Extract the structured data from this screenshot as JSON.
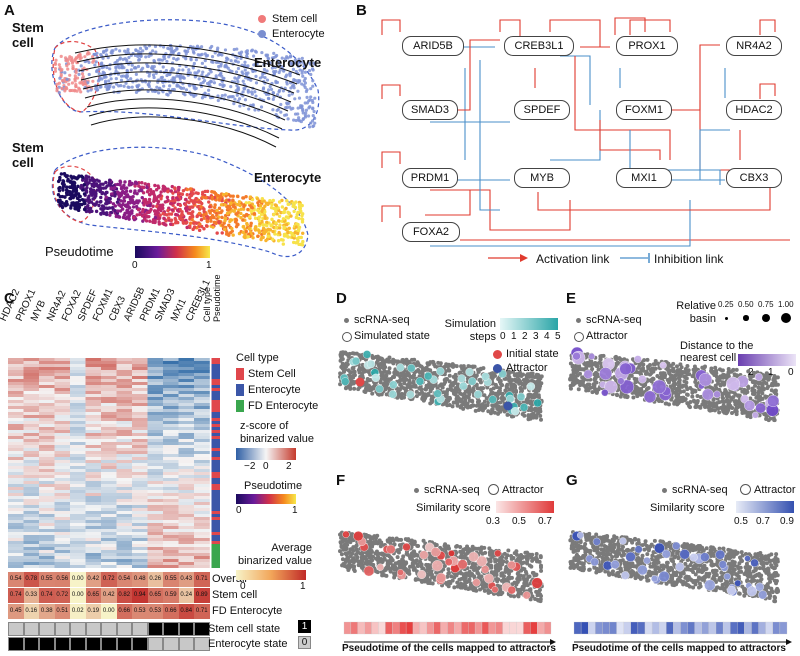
{
  "panels": {
    "A": "A",
    "B": "B",
    "C": "C",
    "D": "D",
    "E": "E",
    "F": "F",
    "G": "G"
  },
  "panelA": {
    "legend": [
      {
        "label": "Stem cell",
        "color": "#f07a7a"
      },
      {
        "label": "Enterocyte",
        "color": "#7b8fd0"
      }
    ],
    "stem_label": "Stem\ncell",
    "stem_label_lines": [
      "Stem",
      "cell"
    ],
    "entero_label": "Enterocyte",
    "pseudotime_label": "Pseudotime",
    "scale_min": "0",
    "scale_max": "1"
  },
  "panelB": {
    "nodes": [
      "ARID5B",
      "CREB3L1",
      "PROX1",
      "NR4A2",
      "SMAD3",
      "SPDEF",
      "FOXM1",
      "HDAC2",
      "PRDM1",
      "MYB",
      "MXI1",
      "CBX3",
      "FOXA2"
    ],
    "legend_activation": "Activation link",
    "legend_inhibition": "Inhibition link",
    "colors": {
      "activation": "#e03a2e",
      "inhibition": "#4a8fc9"
    }
  },
  "panelC": {
    "genes": [
      "HDAC2",
      "PROX1",
      "MYB",
      "NR4A2",
      "FOXA2",
      "SPDEF",
      "FOXM1",
      "CBX3",
      "ARID5B",
      "PRDM1",
      "SMAD3",
      "MXI1",
      "CREB3L1"
    ],
    "extra_cols": [
      "Cell type",
      "Pseudotime"
    ],
    "legend_celltype_title": "Cell type",
    "celltypes": [
      {
        "label": "Stem Cell",
        "color": "#e0474c"
      },
      {
        "label": "Enterocyte",
        "color": "#3b56a8"
      },
      {
        "label": "FD Enterocyte",
        "color": "#3aa64e"
      }
    ],
    "zscore_title": "z-score of\nbinarized value",
    "zscore_lines": [
      "z-score of",
      "binarized value"
    ],
    "zscore_ticks": [
      "−2",
      "0",
      "2"
    ],
    "pseudotime_title": "Pseudotime",
    "pt_ticks": [
      "0",
      "1"
    ],
    "avg_title": "Average\nbinarized value",
    "avg_lines": [
      "Average",
      "binarized value"
    ],
    "avg_ticks": [
      "0",
      "1"
    ],
    "avg_rows": [
      {
        "label": "Overall",
        "values": [
          "0.54",
          "0.78",
          "0.55",
          "0.56",
          "0.00",
          "0.42",
          "0.72",
          "0.54",
          "0.48",
          "0.26",
          "0.55",
          "0.43",
          "0.71"
        ]
      },
      {
        "label": "Stem cell",
        "values": [
          "0.74",
          "0.33",
          "0.74",
          "0.72",
          "0.00",
          "0.65",
          "0.42",
          "0.82",
          "0.94",
          "0.65",
          "0.59",
          "0.24",
          "0.89"
        ]
      },
      {
        "label": "FD Enterocyte",
        "values": [
          "0.45",
          "0.16",
          "0.38",
          "0.51",
          "0.02",
          "0.19",
          "0.00",
          "0.66",
          "0.53",
          "0.53",
          "0.66",
          "0.84",
          "0.71"
        ]
      }
    ],
    "state_rows": [
      {
        "label": "Stem cell state",
        "bits": [
          0,
          0,
          0,
          0,
          0,
          0,
          0,
          0,
          0,
          1,
          1,
          1,
          1
        ]
      },
      {
        "label": "Enterocyte state",
        "bits": [
          1,
          1,
          1,
          1,
          1,
          1,
          1,
          1,
          1,
          0,
          0,
          0,
          0
        ]
      }
    ],
    "state_key": [
      "1",
      "0"
    ]
  },
  "panelD": {
    "legend_sc": "scRNA-seq",
    "legend_sim": "Simulated state",
    "sim_title": "Simulation\nsteps",
    "sim_lines": [
      "Simulation",
      "steps"
    ],
    "sim_ticks": [
      "0",
      "1",
      "2",
      "3",
      "4",
      "5"
    ],
    "initial": "Initial state",
    "attractor": "Attractor"
  },
  "panelE": {
    "legend_sc": "scRNA-seq",
    "legend_att": "Attractor",
    "basin_title": "Relative\nbasin",
    "basin_lines": [
      "Relative",
      "basin"
    ],
    "basin_ticks": [
      "0.25",
      "0.50",
      "0.75",
      "1.00"
    ],
    "dist_title": "Distance to the\nnearest cell",
    "dist_lines": [
      "Distance to the",
      "nearest cell"
    ],
    "dist_ticks": [
      "2",
      "1",
      "0"
    ]
  },
  "panelF": {
    "legend_sc": "scRNA-seq",
    "legend_att": "Attractor",
    "sim_title": "Similarity score",
    "ticks": [
      "0.3",
      "0.5",
      "0.7"
    ],
    "axis_label": "Pseudotime of the cells mapped to attractors"
  },
  "panelG": {
    "legend_sc": "scRNA-seq",
    "legend_att": "Attractor",
    "sim_title": "Similarity score",
    "ticks": [
      "0.5",
      "0.7",
      "0.9"
    ],
    "axis_label": "Pseudotime of the cells mapped to attractors"
  }
}
